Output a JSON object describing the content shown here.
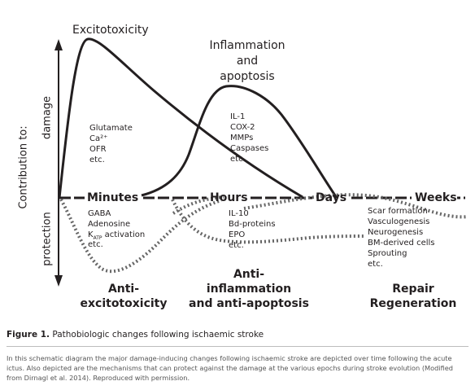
{
  "axis": {
    "y_title": "Contribution to:",
    "y_top": "damage",
    "y_bottom": "protection",
    "time_labels": [
      "Minutes",
      "Hours",
      "Days",
      "Weeks"
    ]
  },
  "damage": {
    "excitotoxicity": {
      "title": "Excitotoxicity",
      "items": [
        "Glutamate",
        "Ca²⁺",
        "OFR",
        "etc."
      ]
    },
    "inflammation": {
      "title_lines": [
        "Inflammation",
        "and",
        "apoptosis"
      ],
      "items": [
        "IL-1",
        "COX-2",
        "MMPs",
        "Caspases",
        "etc."
      ]
    }
  },
  "protection": {
    "anti_excitotoxicity": {
      "items": [
        "GABA",
        "Adenosine"
      ],
      "katp_k": "K",
      "katp_sub": "ATP",
      "katp_rest": " activation",
      "etc": "etc.",
      "title_lines": [
        "Anti-",
        "excitotoxicity"
      ]
    },
    "anti_inflammation": {
      "items": [
        "IL-10",
        "Bd-proteins",
        "EPO",
        "etc."
      ],
      "title_lines": [
        "Anti-",
        "inflammation",
        "and anti-apoptosis"
      ]
    },
    "repair": {
      "items": [
        "Scar formation",
        "Vasculogenesis",
        "Neurogenesis",
        "BM-derived cells",
        "Sprouting",
        "etc."
      ],
      "title_lines": [
        "Repair",
        "Regeneration"
      ]
    }
  },
  "caption": {
    "label": "Figure 1.",
    "text": " Pathobiologic changes following ischaemic stroke",
    "note": "In this schematic diagram the major damage-inducing changes following ischaemic stroke are depicted over time following the acute ictus. Also depicted are the mechanisms that can protect against the damage at the various epochs during stroke evolution (Modified from Dirnagl et al. 2014). Reproduced with permission."
  },
  "colors": {
    "ink": "#231f20",
    "dotted": "#666666",
    "note": "#555555"
  }
}
